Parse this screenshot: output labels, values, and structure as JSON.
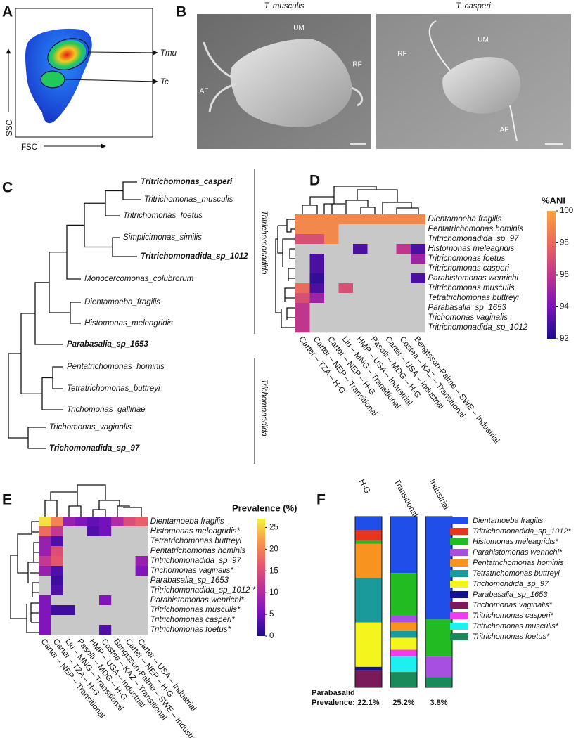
{
  "panel_a": {
    "label": "A",
    "x_axis": "FSC",
    "y_axis": "SSC",
    "gates": [
      "Tmu",
      "Tc"
    ]
  },
  "panel_b": {
    "label": "B",
    "images": [
      {
        "title": "T. musculis",
        "labels": [
          "UM",
          "RF",
          "AF"
        ]
      },
      {
        "title": "T. casperi",
        "labels": [
          "RF",
          "UM",
          "AF"
        ]
      }
    ]
  },
  "panel_c": {
    "label": "C",
    "leaves": [
      {
        "name": "Tritrichomonas_casperi",
        "bold": true
      },
      {
        "name": "Tritrichomonas_musculis",
        "bold": false
      },
      {
        "name": "Tritrichomonas_foetus",
        "bold": false
      },
      {
        "name": "Simplicimonas_similis",
        "bold": false
      },
      {
        "name": "Tritrichomonadida_sp_1012",
        "bold": true
      },
      {
        "name": "Monocercomonas_colubrorum",
        "bold": false
      },
      {
        "name": "Dientamoeba_fragilis",
        "bold": false
      },
      {
        "name": "Histomonas_meleagridis",
        "bold": false
      },
      {
        "name": "Parabasalia_sp_1653",
        "bold": true
      },
      {
        "name": "Pentatrichomonas_hominis",
        "bold": false
      },
      {
        "name": "Tetratrichomonas_buttreyi",
        "bold": false
      },
      {
        "name": "Trichomonas_gallinae",
        "bold": false
      },
      {
        "name": "Trichomonas_vaginalis",
        "bold": false
      },
      {
        "name": "Trichomonadida_sp_97",
        "bold": true
      }
    ],
    "groups": [
      "Tritrichomonadida",
      "Trichomonadida"
    ]
  },
  "panel_d": {
    "label": "D",
    "type": "heatmap",
    "rows": [
      "Dientamoeba fragilis",
      "Pentatrichomonas hominis",
      "Tritrichomonadida_sp_97",
      "Histomonas meleagridis",
      "Tritrichomonas foetus",
      "Tritrichomonas casperi",
      "Parahistomonas wenrichi",
      "Tritrichomonas musculis",
      "Tetratrichomonas buttreyi",
      "Parabasalia_sp_1653",
      "Trichomonas vaginalis",
      "Tritrichomonadida_sp_1012"
    ],
    "columns": [
      "Carter – TZA – H-G",
      "Carter – NEP – Transitional",
      "Carter – NEP – H-G",
      "Liu – MNG – Transitional",
      "HMP – USA – Industrial",
      "Pasolli – MDG – H-G",
      "Carter – USA – Industrial",
      "Costea – KAZ – Transitional",
      "Bengtsson-Palme – SWE – Industrial"
    ],
    "values": [
      [
        99,
        99,
        99,
        99,
        99,
        99,
        99,
        99,
        99
      ],
      [
        99,
        99,
        99,
        null,
        null,
        null,
        null,
        null,
        null
      ],
      [
        97,
        97,
        99,
        null,
        null,
        null,
        null,
        null,
        null
      ],
      [
        null,
        null,
        null,
        null,
        93,
        null,
        null,
        96,
        93
      ],
      [
        null,
        93,
        null,
        null,
        null,
        null,
        null,
        null,
        95
      ],
      [
        null,
        93,
        null,
        null,
        null,
        null,
        null,
        null,
        null
      ],
      [
        null,
        92.5,
        null,
        null,
        null,
        null,
        null,
        null,
        93
      ],
      [
        98,
        93,
        null,
        97,
        null,
        null,
        null,
        null,
        null
      ],
      [
        97,
        95,
        null,
        null,
        null,
        null,
        null,
        null,
        null
      ],
      [
        96,
        null,
        null,
        null,
        null,
        null,
        null,
        null,
        null
      ],
      [
        96,
        null,
        null,
        null,
        null,
        null,
        null,
        null,
        null
      ],
      [
        96,
        null,
        null,
        null,
        null,
        null,
        null,
        null,
        null
      ]
    ],
    "colorbar_title": "%ANI",
    "colorbar_lim": [
      92,
      100
    ],
    "colorbar_ticks": [
      100,
      98,
      96,
      94,
      92
    ],
    "colormap": [
      "#1c0b8c",
      "#7a12b8",
      "#c0368c",
      "#ec6a5c",
      "#f9a53c"
    ],
    "missing_color": "#c8c8c8"
  },
  "panel_e": {
    "label": "E",
    "type": "heatmap",
    "rows": [
      "Dientamoeba fragilis",
      "Histomonas meleagridis*",
      "Tetratrichomonas buttreyi",
      "Pentatrichomonas hominis",
      "Tritrichomonadida_sp_97",
      "Trichomonas vaginalis*",
      "Parabasalia_sp_1653",
      "Tritrichomonadida_sp_1012 *",
      "Parahistomonas wenrichi*",
      "Tritrichomonas musculis*",
      "Tritrichomonas casperi*",
      "Tritrichomonas foetus*"
    ],
    "columns": [
      "Carter – NEP – Transitional",
      "Carter – TZA – H-G",
      "Liu – MNG – Transitional",
      "Pasolli – MDG – H-G",
      "HMP – USA – Industrial",
      "Costea – KAZ – Transitional",
      "Bengtsson-Palme – SWE – Industrial",
      "Carter – NEP – H-G",
      "Carter – USA – Industrial"
    ],
    "values": [
      [
        26,
        20,
        8,
        6,
        4,
        5,
        10,
        15,
        17
      ],
      [
        18,
        12,
        null,
        null,
        3,
        5,
        null,
        null,
        null
      ],
      [
        8,
        3,
        null,
        null,
        null,
        null,
        null,
        null,
        null
      ],
      [
        8,
        15,
        null,
        null,
        null,
        null,
        null,
        null,
        null
      ],
      [
        12,
        16,
        null,
        null,
        null,
        null,
        null,
        null,
        8
      ],
      [
        8,
        3,
        null,
        null,
        null,
        null,
        null,
        null,
        6
      ],
      [
        null,
        2,
        null,
        null,
        null,
        null,
        null,
        null,
        null
      ],
      [
        null,
        3,
        null,
        null,
        null,
        null,
        null,
        null,
        null
      ],
      [
        6,
        null,
        null,
        null,
        null,
        6,
        null,
        null,
        null
      ],
      [
        6,
        2,
        2,
        null,
        null,
        null,
        null,
        null,
        null
      ],
      [
        6,
        null,
        null,
        null,
        null,
        null,
        null,
        null,
        null
      ],
      [
        6,
        null,
        null,
        null,
        null,
        3,
        null,
        null,
        null
      ]
    ],
    "colorbar_title": "Prevalence (%)",
    "colorbar_lim": [
      0,
      27
    ],
    "colorbar_ticks": [
      25,
      20,
      15,
      10,
      5,
      0
    ],
    "colormap": [
      "#1c0b8c",
      "#7a12c0",
      "#b8309c",
      "#e6566e",
      "#f8954a",
      "#f4f23c"
    ],
    "missing_color": "#c8c8c8"
  },
  "panel_f": {
    "label": "F",
    "type": "stacked_bar",
    "categories": [
      "H-G",
      "Transitional",
      "Industrial"
    ],
    "series": [
      {
        "name": "Dientamoeba fragilis",
        "color": "#1f4fe8",
        "values": [
          8,
          33,
          60
        ]
      },
      {
        "name": "Tritrichomonadida_sp_1012*",
        "color": "#e8351e",
        "values": [
          6,
          0,
          0
        ]
      },
      {
        "name": "Histomonas meleagridis*",
        "color": "#22bb22",
        "values": [
          2,
          25,
          22
        ]
      },
      {
        "name": "Parahistomonas wenrichi*",
        "color": "#a64fe0",
        "values": [
          0,
          4,
          12
        ]
      },
      {
        "name": "Pentatrichomonas hominis",
        "color": "#f7931e",
        "values": [
          20,
          5,
          0
        ]
      },
      {
        "name": "Tetratrichomonas buttreyi",
        "color": "#1a9a9a",
        "values": [
          26,
          4,
          0
        ]
      },
      {
        "name": "Trichomondida_sp_97",
        "color": "#f5f51e",
        "values": [
          26,
          7,
          0
        ]
      },
      {
        "name": "Parabasalia_sp_1653",
        "color": "#14148c",
        "values": [
          2,
          0,
          0
        ]
      },
      {
        "name": "Trichomonas vaginalis*",
        "color": "#7a1a5a",
        "values": [
          10,
          0,
          0
        ]
      },
      {
        "name": "Tritrichomonas casperi*",
        "color": "#f03cf0",
        "values": [
          0,
          4,
          0
        ]
      },
      {
        "name": "Tritrichomonas musculis*",
        "color": "#1ef0f0",
        "values": [
          0,
          9,
          0
        ]
      },
      {
        "name": "Tritrichomonas foetus*",
        "color": "#1a8a5a",
        "values": [
          0,
          9,
          6
        ]
      }
    ],
    "ylim": [
      0,
      100
    ],
    "footer": [
      "Parabasalid",
      "Prevalence:"
    ],
    "prevalence": [
      22.1,
      25.2,
      3.8
    ],
    "prevalence_labels": [
      "22.1%",
      "25.2%",
      "3.8%"
    ]
  }
}
